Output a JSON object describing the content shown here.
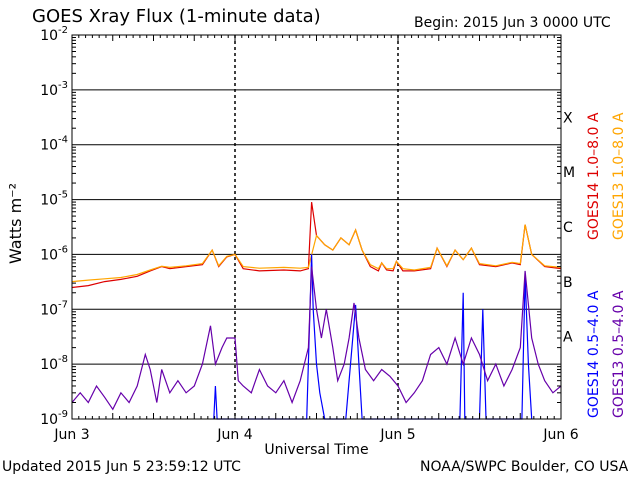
{
  "header": {
    "title": "GOES Xray Flux (1-minute data)",
    "begin": "Begin:  2015 Jun 3 0000 UTC"
  },
  "footer": {
    "updated": "Updated 2015 Jun  5 23:59:12 UTC",
    "credit": "NOAA/SWPC Boulder, CO USA"
  },
  "chart_data": {
    "type": "line",
    "title": "GOES Xray Flux (1-minute data)",
    "xlabel": "Universal Time",
    "ylabel": "Watts m⁻²",
    "yscale": "log",
    "ylim": [
      1e-09,
      0.01
    ],
    "xlim": [
      0,
      3
    ],
    "x_unit": "days since Jun 3 0000 UTC",
    "x_ticks": [
      {
        "x": 0,
        "label": "Jun 3"
      },
      {
        "x": 1,
        "label": "Jun 4"
      },
      {
        "x": 2,
        "label": "Jun 5"
      },
      {
        "x": 3,
        "label": "Jun 6"
      }
    ],
    "y_tick_exponents": [
      -9,
      -8,
      -7,
      -6,
      -5,
      -4,
      -3,
      -2
    ],
    "flare_classes": [
      {
        "label": "A",
        "exp": -8
      },
      {
        "label": "B",
        "exp": -7
      },
      {
        "label": "C",
        "exp": -6
      },
      {
        "label": "M",
        "exp": -5
      },
      {
        "label": "X",
        "exp": -4
      }
    ],
    "grid": true,
    "series": [
      {
        "name": "GOES14 1.0-8.0 A",
        "color": "#dd0000",
        "points": [
          [
            0.0,
            2.5e-07
          ],
          [
            0.1,
            2.7e-07
          ],
          [
            0.2,
            3.2e-07
          ],
          [
            0.3,
            3.5e-07
          ],
          [
            0.4,
            4e-07
          ],
          [
            0.48,
            5e-07
          ],
          [
            0.55,
            6e-07
          ],
          [
            0.6,
            5.5e-07
          ],
          [
            0.7,
            6e-07
          ],
          [
            0.8,
            6.5e-07
          ],
          [
            0.86,
            1.2e-06
          ],
          [
            0.9,
            6e-07
          ],
          [
            0.95,
            9e-07
          ],
          [
            1.0,
            1e-06
          ],
          [
            1.05,
            5.5e-07
          ],
          [
            1.15,
            5e-07
          ],
          [
            1.3,
            5.2e-07
          ],
          [
            1.4,
            5e-07
          ],
          [
            1.45,
            5.5e-07
          ],
          [
            1.47,
            9e-06
          ],
          [
            1.5,
            2.2e-06
          ],
          [
            1.55,
            1.5e-06
          ],
          [
            1.6,
            1.2e-06
          ],
          [
            1.65,
            2e-06
          ],
          [
            1.7,
            1.5e-06
          ],
          [
            1.74,
            2.8e-06
          ],
          [
            1.78,
            1.2e-06
          ],
          [
            1.83,
            6e-07
          ],
          [
            1.88,
            5e-07
          ],
          [
            1.9,
            7e-07
          ],
          [
            1.93,
            5.2e-07
          ],
          [
            1.97,
            5e-07
          ],
          [
            1.99,
            7.5e-07
          ],
          [
            2.03,
            5e-07
          ],
          [
            2.1,
            5e-07
          ],
          [
            2.2,
            5.5e-07
          ],
          [
            2.24,
            1.3e-06
          ],
          [
            2.3,
            6e-07
          ],
          [
            2.35,
            1.2e-06
          ],
          [
            2.4,
            8e-07
          ],
          [
            2.45,
            1.3e-06
          ],
          [
            2.5,
            6.5e-07
          ],
          [
            2.6,
            6e-07
          ],
          [
            2.7,
            7e-07
          ],
          [
            2.75,
            6.5e-07
          ],
          [
            2.78,
            3.5e-06
          ],
          [
            2.82,
            1e-06
          ],
          [
            2.9,
            6e-07
          ],
          [
            3.0,
            5.5e-07
          ]
        ]
      },
      {
        "name": "GOES13 1.0-8.0 A",
        "color": "#ffa500",
        "points": [
          [
            0.0,
            3.2e-07
          ],
          [
            0.1,
            3.4e-07
          ],
          [
            0.2,
            3.6e-07
          ],
          [
            0.3,
            3.8e-07
          ],
          [
            0.4,
            4.3e-07
          ],
          [
            0.48,
            5.2e-07
          ],
          [
            0.55,
            6.1e-07
          ],
          [
            0.6,
            5.8e-07
          ],
          [
            0.7,
            6.2e-07
          ],
          [
            0.8,
            6.8e-07
          ],
          [
            0.86,
            1.2e-06
          ],
          [
            0.9,
            6.2e-07
          ],
          [
            0.95,
            9.2e-07
          ],
          [
            1.0,
            1e-06
          ],
          [
            1.05,
            6e-07
          ],
          [
            1.15,
            5.6e-07
          ],
          [
            1.3,
            5.8e-07
          ],
          [
            1.4,
            5.6e-07
          ],
          [
            1.45,
            5.8e-07
          ],
          [
            1.5,
            2.2e-06
          ],
          [
            1.55,
            1.5e-06
          ],
          [
            1.6,
            1.2e-06
          ],
          [
            1.65,
            2e-06
          ],
          [
            1.7,
            1.5e-06
          ],
          [
            1.74,
            2.8e-06
          ],
          [
            1.78,
            1.2e-06
          ],
          [
            1.83,
            6.5e-07
          ],
          [
            1.88,
            5.5e-07
          ],
          [
            1.9,
            7e-07
          ],
          [
            1.93,
            5.5e-07
          ],
          [
            1.97,
            5.5e-07
          ],
          [
            1.99,
            7.5e-07
          ],
          [
            2.03,
            5.5e-07
          ],
          [
            2.1,
            5.2e-07
          ],
          [
            2.2,
            5.8e-07
          ],
          [
            2.24,
            1.3e-06
          ],
          [
            2.3,
            6.2e-07
          ],
          [
            2.35,
            1.2e-06
          ],
          [
            2.4,
            8e-07
          ],
          [
            2.45,
            1.3e-06
          ],
          [
            2.5,
            6.8e-07
          ],
          [
            2.6,
            6.2e-07
          ],
          [
            2.7,
            7.2e-07
          ],
          [
            2.75,
            6.8e-07
          ],
          [
            2.78,
            3.5e-06
          ],
          [
            2.82,
            1e-06
          ],
          [
            2.9,
            6.2e-07
          ],
          [
            3.0,
            5.8e-07
          ]
        ]
      },
      {
        "name": "GOES14 0.5-4.0 A",
        "color": "#0000ff",
        "points": [
          [
            0.87,
            1e-09
          ],
          [
            0.88,
            4e-09
          ],
          [
            0.89,
            1e-09
          ],
          [
            1.44,
            1e-09
          ],
          [
            1.46,
            1e-07
          ],
          [
            1.47,
            1e-06
          ],
          [
            1.48,
            1e-07
          ],
          [
            1.5,
            1e-08
          ],
          [
            1.52,
            3e-09
          ],
          [
            1.55,
            1e-09
          ],
          [
            1.68,
            1e-09
          ],
          [
            1.74,
            1.2e-07
          ],
          [
            1.76,
            1e-08
          ],
          [
            1.78,
            1e-09
          ],
          [
            2.38,
            1e-09
          ],
          [
            2.4,
            2e-07
          ],
          [
            2.41,
            1e-09
          ],
          [
            2.5,
            1e-09
          ],
          [
            2.52,
            1e-07
          ],
          [
            2.54,
            1e-09
          ],
          [
            2.76,
            1e-09
          ],
          [
            2.78,
            4e-07
          ],
          [
            2.8,
            1e-08
          ],
          [
            2.82,
            1e-09
          ]
        ]
      },
      {
        "name": "GOES13 0.5-4.0 A",
        "color": "#6600aa",
        "points": [
          [
            0.0,
            2e-09
          ],
          [
            0.05,
            3e-09
          ],
          [
            0.1,
            2e-09
          ],
          [
            0.15,
            4e-09
          ],
          [
            0.2,
            2.5e-09
          ],
          [
            0.25,
            1.5e-09
          ],
          [
            0.3,
            3e-09
          ],
          [
            0.35,
            2e-09
          ],
          [
            0.4,
            4e-09
          ],
          [
            0.45,
            1.5e-08
          ],
          [
            0.48,
            8e-09
          ],
          [
            0.52,
            2e-09
          ],
          [
            0.55,
            8e-09
          ],
          [
            0.6,
            3e-09
          ],
          [
            0.65,
            5e-09
          ],
          [
            0.7,
            3e-09
          ],
          [
            0.75,
            4e-09
          ],
          [
            0.8,
            1e-08
          ],
          [
            0.85,
            5e-08
          ],
          [
            0.88,
            1e-08
          ],
          [
            0.92,
            2e-08
          ],
          [
            0.95,
            3e-08
          ],
          [
            1.0,
            3e-08
          ],
          [
            1.02,
            5e-09
          ],
          [
            1.05,
            4e-09
          ],
          [
            1.1,
            3e-09
          ],
          [
            1.15,
            8e-09
          ],
          [
            1.2,
            4e-09
          ],
          [
            1.25,
            3e-09
          ],
          [
            1.3,
            5e-09
          ],
          [
            1.35,
            2e-09
          ],
          [
            1.4,
            5e-09
          ],
          [
            1.45,
            2e-08
          ],
          [
            1.47,
            6e-07
          ],
          [
            1.5,
            1e-07
          ],
          [
            1.53,
            3e-08
          ],
          [
            1.56,
            1e-07
          ],
          [
            1.6,
            2e-08
          ],
          [
            1.63,
            5e-09
          ],
          [
            1.67,
            1e-08
          ],
          [
            1.7,
            3e-08
          ],
          [
            1.73,
            1.3e-07
          ],
          [
            1.76,
            3e-08
          ],
          [
            1.8,
            8e-09
          ],
          [
            1.85,
            5e-09
          ],
          [
            1.9,
            8e-09
          ],
          [
            1.95,
            6e-09
          ],
          [
            2.0,
            4e-09
          ],
          [
            2.05,
            2e-09
          ],
          [
            2.1,
            3e-09
          ],
          [
            2.15,
            5e-09
          ],
          [
            2.2,
            1.5e-08
          ],
          [
            2.25,
            2e-08
          ],
          [
            2.3,
            1e-08
          ],
          [
            2.35,
            3e-08
          ],
          [
            2.4,
            1e-08
          ],
          [
            2.45,
            3e-08
          ],
          [
            2.5,
            1.5e-08
          ],
          [
            2.55,
            5e-09
          ],
          [
            2.6,
            1e-08
          ],
          [
            2.65,
            4e-09
          ],
          [
            2.7,
            8e-09
          ],
          [
            2.75,
            2e-08
          ],
          [
            2.78,
            5e-07
          ],
          [
            2.82,
            3e-08
          ],
          [
            2.86,
            1e-08
          ],
          [
            2.9,
            5e-09
          ],
          [
            2.95,
            3e-09
          ],
          [
            3.0,
            4e-09
          ]
        ]
      }
    ],
    "legend": [
      {
        "label": "GOES14 1.0–8.0 A",
        "color": "#dd0000"
      },
      {
        "label": "GOES13 1.0–8.0 A",
        "color": "#ffa500"
      },
      {
        "label": "GOES14 0.5–4.0 A",
        "color": "#0000ff"
      },
      {
        "label": "GOES13 0.5–4.0 A",
        "color": "#6600aa"
      }
    ],
    "legend_placement": "right, vertical"
  }
}
